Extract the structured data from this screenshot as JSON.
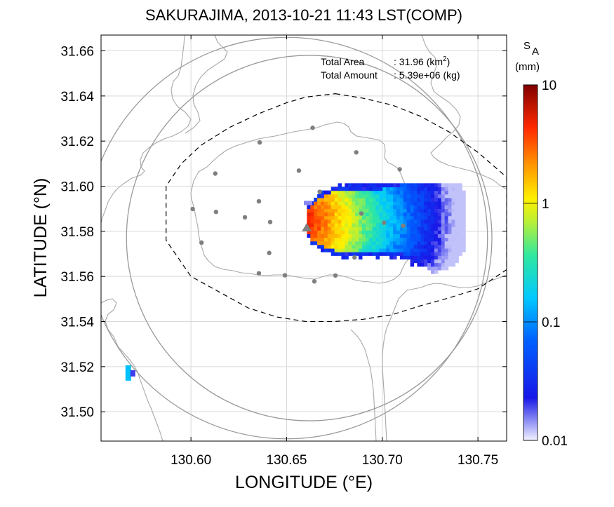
{
  "chart_data": {
    "type": "heatmap",
    "title": "SAKURAJIMA, 2013-10-21 11:43 LST(COMP)",
    "xlabel": "LONGITUDE (°E)",
    "ylabel": "LATITUDE (°N)",
    "xlim": [
      130.553,
      130.765
    ],
    "ylim": [
      31.487,
      31.667
    ],
    "xticks": [
      "130.60",
      "130.65",
      "130.70",
      "130.75"
    ],
    "xtick_values": [
      130.6,
      130.65,
      130.7,
      130.75
    ],
    "yticks": [
      "31.50",
      "31.52",
      "31.54",
      "31.56",
      "31.58",
      "31.60",
      "31.62",
      "31.64",
      "31.66"
    ],
    "ytick_values": [
      31.5,
      31.52,
      31.54,
      31.56,
      31.58,
      31.6,
      31.62,
      31.64,
      31.66
    ],
    "grid": true,
    "annotations": {
      "area_label": "Total Area",
      "area_value": ": 31.96 (km",
      "area_sup": "2",
      "area_close": ")",
      "amount_label": "Total Amount",
      "amount_value": ": 5.39e+06 (kg)"
    },
    "colorbar": {
      "label_main": "S",
      "label_sub": "A",
      "unit": "(mm)",
      "scale": "log",
      "range": [
        0.01,
        10
      ],
      "ticks": [
        "10",
        "1",
        "0.1",
        "0.01"
      ],
      "tick_values": [
        10,
        1,
        0.1,
        0.01
      ],
      "colors": [
        "#e8e8ff",
        "#1010e0",
        "#0060ff",
        "#00c8ff",
        "#30e8b0",
        "#b0f040",
        "#fff000",
        "#ff8c00",
        "#ff2000",
        "#800000"
      ]
    },
    "vent": {
      "name": "Showa crater",
      "lon": 130.6605,
      "lat": 31.5815,
      "color": "#808080"
    },
    "stations": [
      {
        "lon": 130.6636,
        "lat": 31.6259
      },
      {
        "lon": 130.6359,
        "lat": 31.6194
      },
      {
        "lon": 130.6864,
        "lat": 31.615
      },
      {
        "lon": 130.6127,
        "lat": 31.6056
      },
      {
        "lon": 130.6564,
        "lat": 31.6069
      },
      {
        "lon": 130.7091,
        "lat": 31.6075
      },
      {
        "lon": 130.6673,
        "lat": 31.5975
      },
      {
        "lon": 130.6009,
        "lat": 31.5899
      },
      {
        "lon": 130.6131,
        "lat": 31.5886
      },
      {
        "lon": 130.6355,
        "lat": 31.5933
      },
      {
        "lon": 130.6282,
        "lat": 31.5862
      },
      {
        "lon": 130.6414,
        "lat": 31.5841
      },
      {
        "lon": 130.6891,
        "lat": 31.5879
      },
      {
        "lon": 130.7009,
        "lat": 31.5838
      },
      {
        "lon": 130.7109,
        "lat": 31.5825
      },
      {
        "lon": 130.6055,
        "lat": 31.575
      },
      {
        "lon": 130.6409,
        "lat": 31.5704
      },
      {
        "lon": 130.6355,
        "lat": 31.5614
      },
      {
        "lon": 130.6491,
        "lat": 31.5605
      },
      {
        "lon": 130.6645,
        "lat": 31.5578
      },
      {
        "lon": 130.6755,
        "lat": 31.5604
      },
      {
        "lon": 130.6855,
        "lat": 31.5684
      }
    ],
    "rings": [
      {
        "center_lon": 130.6618,
        "center_lat": 31.577,
        "radius_lon": 0.0955,
        "radius_lat": 0.081
      },
      {
        "center_lon": 130.65,
        "center_lat": 31.577,
        "radius_lon": 0.105,
        "radius_lat": 0.089
      }
    ],
    "domain_outline": [
      [
        130.6755,
        31.641
      ],
      [
        130.69,
        31.639
      ],
      [
        130.705,
        31.636
      ],
      [
        130.72,
        31.631
      ],
      [
        130.735,
        31.624
      ],
      [
        130.75,
        31.615
      ],
      [
        130.765,
        31.604
      ],
      [
        130.765,
        31.563
      ],
      [
        130.75,
        31.5545
      ],
      [
        130.735,
        31.5505
      ],
      [
        130.72,
        31.547
      ],
      [
        130.705,
        31.543
      ],
      [
        130.69,
        31.541
      ],
      [
        130.675,
        31.54
      ],
      [
        130.66,
        31.54
      ],
      [
        130.645,
        31.542
      ],
      [
        130.63,
        31.546
      ],
      [
        130.615,
        31.553
      ],
      [
        130.6,
        31.56
      ],
      [
        130.587,
        31.576
      ],
      [
        130.587,
        31.6
      ],
      [
        130.595,
        31.61
      ],
      [
        130.605,
        31.618
      ],
      [
        130.62,
        31.626
      ],
      [
        130.635,
        31.632
      ],
      [
        130.65,
        31.637
      ],
      [
        130.66,
        31.6395
      ],
      [
        130.6755,
        31.641
      ]
    ],
    "ash_blob": {
      "lon_min": 130.657,
      "lon_max": 130.742,
      "lat_min": 31.5565,
      "lat_max": 31.6,
      "vent_lon": 130.6605,
      "vent_lat": 31.5795,
      "peak_value": 5.0
    },
    "isolated_patch": {
      "lon": 130.5665,
      "lat": 31.5175,
      "value": 0.15
    }
  },
  "colors": {
    "coastline": "#a8a8a8",
    "grid": "#d9d9d9",
    "station": "#7f7f7f"
  }
}
